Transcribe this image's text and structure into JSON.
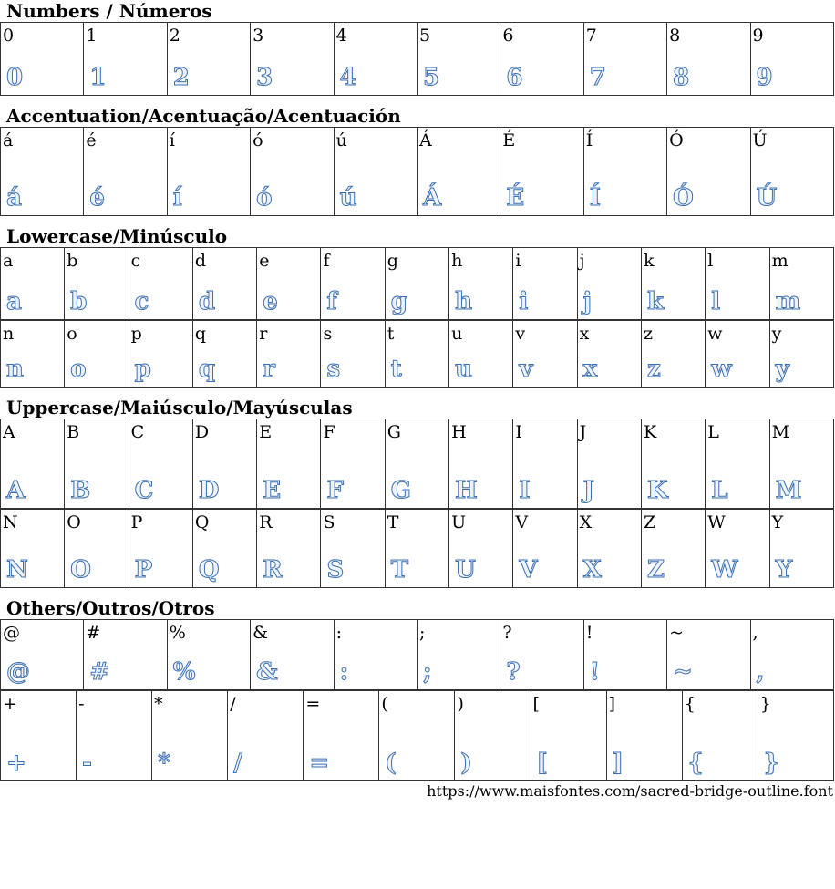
{
  "sections": [
    {
      "title": "Numbers / Números",
      "rows": [
        [
          "0",
          "1",
          "2",
          "3",
          "4",
          "5",
          "6",
          "7",
          "8",
          "9"
        ]
      ],
      "heights": [
        80
      ]
    },
    {
      "title": "Accentuation/Acentuação/Acentuación",
      "rows": [
        [
          "á",
          "é",
          "í",
          "ó",
          "ú",
          "Á",
          "É",
          "Í",
          "Ó",
          "Ú"
        ]
      ],
      "heights": [
        97
      ]
    },
    {
      "title": "Lowercase/Minúsculo",
      "rows": [
        [
          "a",
          "b",
          "c",
          "d",
          "e",
          "f",
          "g",
          "h",
          "i",
          "j",
          "k",
          "l",
          "m"
        ],
        [
          "n",
          "o",
          "p",
          "q",
          "r",
          "s",
          "t",
          "u",
          "v",
          "x",
          "z",
          "w",
          "y"
        ]
      ],
      "heights": [
        79,
        73
      ]
    },
    {
      "title": "Uppercase/Maiúsculo/Mayúsculas",
      "rows": [
        [
          "A",
          "B",
          "C",
          "D",
          "E",
          "F",
          "G",
          "H",
          "I",
          "J",
          "K",
          "L",
          "M"
        ],
        [
          "N",
          "O",
          "P",
          "Q",
          "R",
          "S",
          "T",
          "U",
          "V",
          "X",
          "Z",
          "W",
          "Y"
        ]
      ],
      "heights": [
        98,
        86
      ]
    },
    {
      "title": "Others/Outros/Otros",
      "rows": [
        [
          "@",
          "#",
          "%",
          "&",
          ":",
          ";",
          "?",
          "!",
          "~",
          ","
        ]
      ],
      "heights": [
        77
      ],
      "extra": {
        "row": [
          "+",
          "-",
          "*",
          "/",
          "=",
          "(",
          ")",
          "[",
          "]",
          "{",
          "}"
        ],
        "height": 99
      }
    }
  ],
  "footer": "https://www.maisfontes.com/sacred-bridge-outline.font",
  "colors": {
    "glyph_outline": "#3b6fb3"
  }
}
